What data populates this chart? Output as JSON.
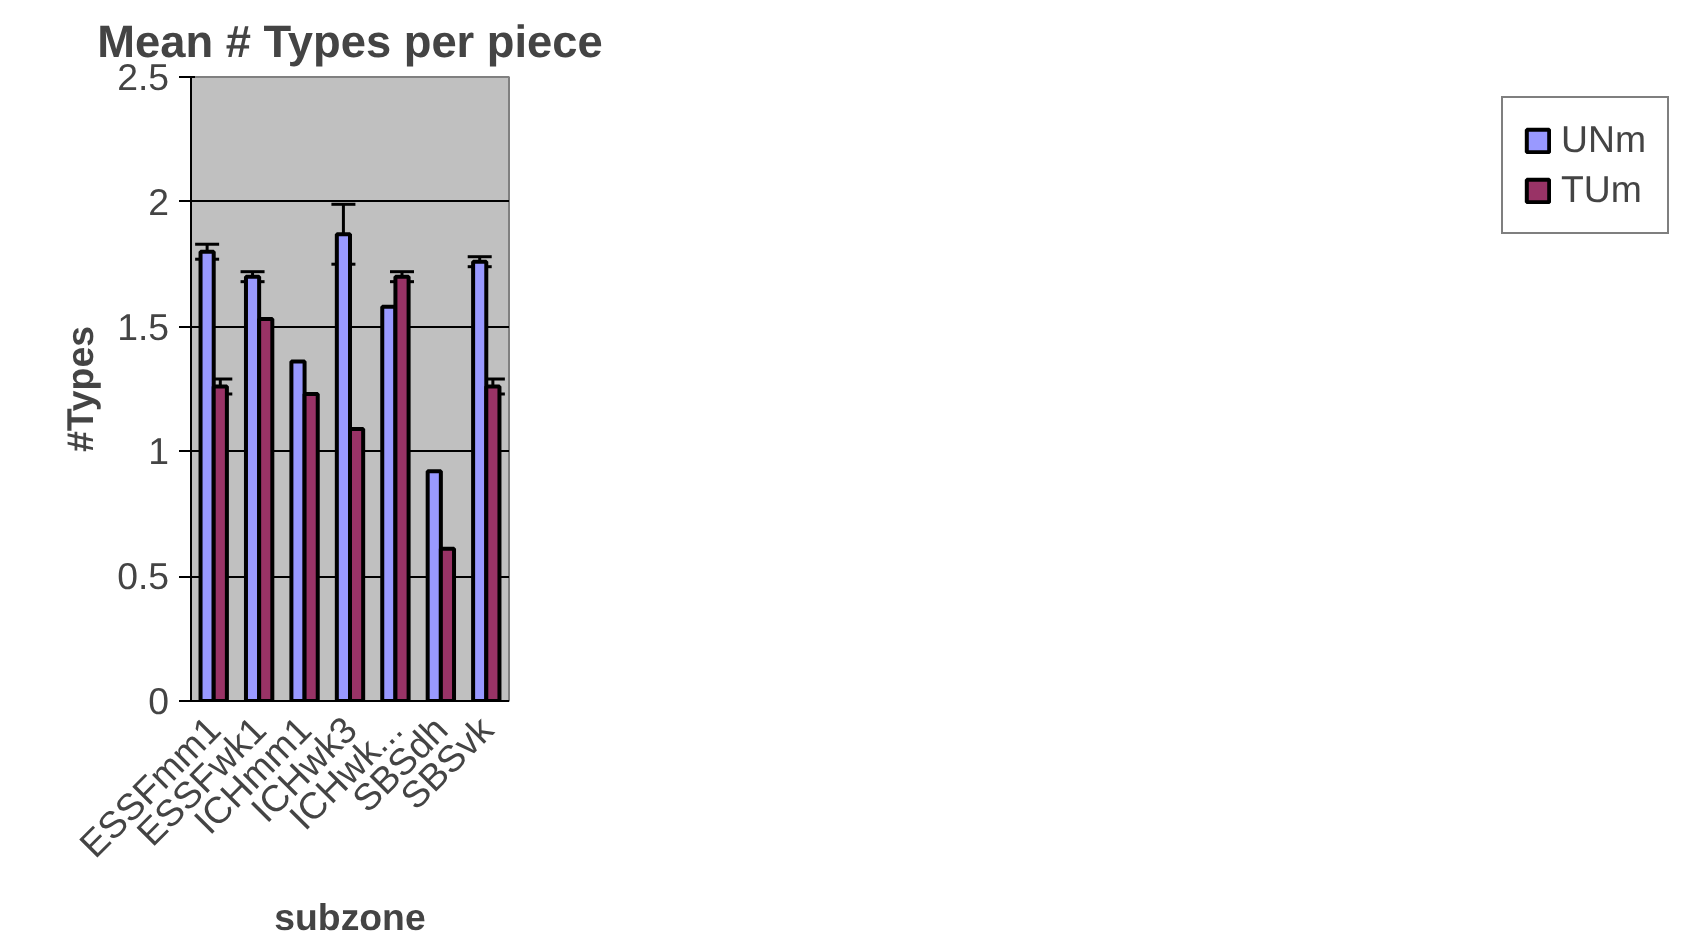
{
  "chart_data": {
    "type": "bar",
    "title": "Mean # Types per piece",
    "xlabel": "subzone",
    "ylabel": "#Types",
    "categories": [
      "ESSFmm1",
      "ESSFwk1",
      "ICHmm1",
      "ICHwk3",
      "ICHwk...",
      "SBSdh",
      "SBSvk"
    ],
    "series": [
      {
        "name": "UNm",
        "color": "#9999ff",
        "values": [
          1.8,
          1.7,
          1.36,
          1.87,
          1.58,
          0.92,
          1.76
        ],
        "errors": [
          0.03,
          0.02,
          null,
          0.12,
          null,
          null,
          0.02
        ]
      },
      {
        "name": "TUm",
        "color": "#993366",
        "values": [
          1.26,
          1.53,
          1.23,
          1.09,
          1.7,
          0.61,
          1.26
        ],
        "errors": [
          0.03,
          null,
          null,
          null,
          0.02,
          null,
          0.03
        ]
      }
    ],
    "ylim": [
      0,
      2.5
    ],
    "yticks": [
      0,
      0.5,
      1,
      1.5,
      2,
      2.5
    ],
    "grid": "y",
    "legend": "right"
  }
}
